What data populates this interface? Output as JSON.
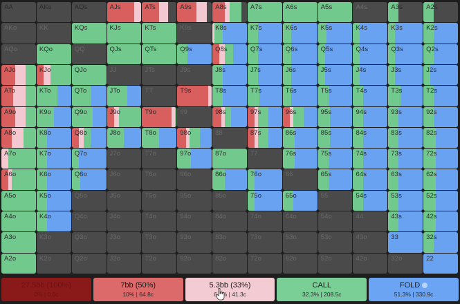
{
  "colors": {
    "raise_large": "#d95e5e",
    "raise_small": "#f4c8d0",
    "call": "#72c98e",
    "fold": "#69a2f1",
    "empty": "#4a4a4a"
  },
  "hands": [
    [
      "AA",
      "AKs",
      "AQs",
      "AJs",
      "ATs",
      "A9s",
      "A8s",
      "A7s",
      "A6s",
      "A5s",
      "A4s",
      "A3s",
      "A2s"
    ],
    [
      "AKo",
      "KK",
      "KQs",
      "KJs",
      "KTs",
      "K9s",
      "K8s",
      "K7s",
      "K6s",
      "K5s",
      "K4s",
      "K3s",
      "K2s"
    ],
    [
      "AQo",
      "KQo",
      "QQ",
      "QJs",
      "QTs",
      "Q9s",
      "Q8s",
      "Q7s",
      "Q6s",
      "Q5s",
      "Q4s",
      "Q3s",
      "Q2s"
    ],
    [
      "AJo",
      "KJo",
      "QJo",
      "JJ",
      "JTs",
      "J9s",
      "J8s",
      "J7s",
      "J6s",
      "J5s",
      "J4s",
      "J3s",
      "J2s"
    ],
    [
      "ATo",
      "KTo",
      "QTo",
      "JTo",
      "TT",
      "T9s",
      "T8s",
      "T7s",
      "T6s",
      "T5s",
      "T4s",
      "T3s",
      "T2s"
    ],
    [
      "A9o",
      "K9o",
      "Q9o",
      "J9o",
      "T9o",
      "99",
      "98s",
      "97s",
      "96s",
      "95s",
      "94s",
      "93s",
      "92s"
    ],
    [
      "A8o",
      "K8o",
      "Q8o",
      "J8o",
      "T8o",
      "98o",
      "88",
      "87s",
      "86s",
      "85s",
      "84s",
      "83s",
      "82s"
    ],
    [
      "A7o",
      "K7o",
      "Q7o",
      "J7o",
      "T7o",
      "97o",
      "87o",
      "77",
      "76s",
      "75s",
      "74s",
      "73s",
      "72s"
    ],
    [
      "A6o",
      "K6o",
      "Q6o",
      "J6o",
      "T6o",
      "96o",
      "86o",
      "76o",
      "66",
      "65s",
      "64s",
      "63s",
      "62s"
    ],
    [
      "A5o",
      "K5o",
      "Q5o",
      "J5o",
      "T5o",
      "95o",
      "85o",
      "75o",
      "65o",
      "55",
      "54s",
      "53s",
      "52s"
    ],
    [
      "A4o",
      "K4o",
      "Q4o",
      "J4o",
      "T4o",
      "94o",
      "84o",
      "74o",
      "64o",
      "54o",
      "44",
      "43s",
      "42s"
    ],
    [
      "A3o",
      "K3o",
      "Q3o",
      "J3o",
      "T3o",
      "93o",
      "83o",
      "73o",
      "63o",
      "53o",
      "43o",
      "33",
      "32s"
    ],
    [
      "A2o",
      "K2o",
      "Q2o",
      "J2o",
      "T2o",
      "92o",
      "82o",
      "72o",
      "62o",
      "52o",
      "42o",
      "32o",
      "22"
    ]
  ],
  "strategy": [
    [
      [
        0,
        0,
        0,
        0,
        1
      ],
      [
        0,
        0,
        0,
        0,
        1
      ],
      [
        0,
        0,
        0,
        0,
        1
      ],
      [
        0.8,
        0.2,
        0,
        0
      ],
      [
        0.5,
        0.25,
        0,
        0
      ],
      [
        0.55,
        0.3,
        0,
        0
      ],
      [
        0.35,
        0.15,
        0.35,
        0
      ],
      [
        0,
        0,
        1,
        0
      ],
      [
        0,
        0,
        1,
        0
      ],
      [
        0,
        0,
        1,
        0
      ],
      [
        0,
        0,
        0,
        0
      ],
      [
        0,
        0,
        0.3,
        0
      ],
      [
        0,
        0,
        0.3,
        0
      ]
    ],
    [
      [
        0,
        0,
        0,
        0
      ],
      [
        0,
        0,
        0,
        0
      ],
      [
        0,
        0,
        1,
        0
      ],
      [
        0,
        0,
        1,
        0
      ],
      [
        0,
        0,
        1,
        0
      ],
      [
        0,
        0,
        0,
        0
      ],
      [
        0,
        0.05,
        0.25,
        0.7
      ],
      [
        0,
        0,
        0.3,
        0.7
      ],
      [
        0,
        0,
        0.25,
        0.75
      ],
      [
        0,
        0,
        0.25,
        0.75
      ],
      [
        0,
        0,
        0.2,
        0.8
      ],
      [
        0,
        0,
        0.2,
        0.8
      ],
      [
        0,
        0,
        0.3,
        0.7
      ]
    ],
    [
      [
        0,
        0,
        0,
        0
      ],
      [
        0,
        0,
        1,
        0
      ],
      [
        0,
        0,
        0,
        0
      ],
      [
        0,
        0,
        1,
        0
      ],
      [
        0,
        0,
        1,
        0
      ],
      [
        0,
        0,
        0.3,
        0.7
      ],
      [
        0.2,
        0.15,
        0.25,
        0.4
      ],
      [
        0,
        0,
        0.3,
        0.7
      ],
      [
        0,
        0,
        0.25,
        0.75
      ],
      [
        0,
        0,
        0.2,
        0.8
      ],
      [
        0,
        0,
        0.2,
        0.8
      ],
      [
        0,
        0,
        0.2,
        0.8
      ],
      [
        0,
        0,
        0.3,
        0.7
      ]
    ],
    [
      [
        0.4,
        0.3,
        0.3,
        0
      ],
      [
        0.2,
        0.2,
        0.6,
        0
      ],
      [
        0,
        0,
        1,
        0
      ],
      [
        0,
        0,
        0,
        0
      ],
      [
        0,
        0,
        0,
        0
      ],
      [
        0,
        0,
        0,
        0
      ],
      [
        0,
        0,
        0.3,
        0.7
      ],
      [
        0,
        0,
        0.3,
        0.7
      ],
      [
        0,
        0,
        0.25,
        0.75
      ],
      [
        0,
        0,
        0.2,
        0.8
      ],
      [
        0,
        0,
        0.2,
        0.8
      ],
      [
        0,
        0,
        0.2,
        0.8
      ],
      [
        0,
        0,
        0.2,
        0.8
      ]
    ],
    [
      [
        0.35,
        0.35,
        0.3,
        0
      ],
      [
        0,
        0,
        0.6,
        0.4
      ],
      [
        0,
        0,
        0.55,
        0.45
      ],
      [
        0,
        0,
        0.6,
        0.4
      ],
      [
        0,
        0,
        0,
        0
      ],
      [
        0.9,
        0.1,
        0,
        0
      ],
      [
        0,
        0,
        0.3,
        0.7
      ],
      [
        0,
        0,
        0.35,
        0.65
      ],
      [
        0,
        0,
        0.25,
        0.75
      ],
      [
        0,
        0,
        0.3,
        0.7
      ],
      [
        0,
        0,
        0.3,
        0.7
      ],
      [
        0,
        0,
        0.35,
        0.65
      ],
      [
        0,
        0,
        0.3,
        0.7
      ]
    ],
    [
      [
        0.4,
        0.3,
        0.3,
        0
      ],
      [
        0,
        0,
        0.5,
        0.5
      ],
      [
        0,
        0,
        0.6,
        0.4
      ],
      [
        0.2,
        0.15,
        0.65,
        0
      ],
      [
        0.85,
        0.1,
        0.05,
        0
      ],
      [
        0,
        0,
        0,
        0
      ],
      [
        0.25,
        0.1,
        0.2,
        0.45
      ],
      [
        0.2,
        0.1,
        0.3,
        0.4
      ],
      [
        0.2,
        0.1,
        0.3,
        0.4
      ],
      [
        0,
        0,
        0.35,
        0.65
      ],
      [
        0,
        0,
        0.3,
        0.7
      ],
      [
        0,
        0,
        0.3,
        0.7
      ],
      [
        0,
        0,
        0.3,
        0.7
      ]
    ],
    [
      [
        0.3,
        0.35,
        0.35,
        0
      ],
      [
        0,
        0,
        0.3,
        0.7
      ],
      [
        0.2,
        0.15,
        0.2,
        0.45
      ],
      [
        0,
        0,
        0.5,
        0.5
      ],
      [
        0,
        0,
        0.5,
        0.5
      ],
      [
        0.25,
        0.1,
        0.3,
        0.35
      ],
      [
        0,
        0,
        0,
        0
      ],
      [
        0.2,
        0.1,
        0.3,
        0.4
      ],
      [
        0,
        0,
        0.35,
        0.65
      ],
      [
        0,
        0,
        0.35,
        0.65
      ],
      [
        0,
        0,
        0.3,
        0.7
      ],
      [
        0,
        0,
        0.3,
        0.7
      ],
      [
        0,
        0,
        0.35,
        0.65
      ]
    ],
    [
      [
        0,
        0.2,
        0.8,
        0
      ],
      [
        0,
        0,
        0.3,
        0.7
      ],
      [
        0,
        0,
        0.2,
        0.8
      ],
      [
        0,
        0,
        0,
        0
      ],
      [
        0,
        0,
        0,
        0
      ],
      [
        0,
        0,
        0.4,
        0.6
      ],
      [
        0,
        0,
        1,
        0
      ],
      [
        0,
        0,
        0,
        0
      ],
      [
        0,
        0,
        0.35,
        0.65
      ],
      [
        0,
        0,
        0.3,
        0.7
      ],
      [
        0,
        0,
        0.3,
        0.7
      ],
      [
        0,
        0,
        0.3,
        0.7
      ],
      [
        0,
        0,
        0.35,
        0.65
      ]
    ],
    [
      [
        0.2,
        0.1,
        0.7,
        0
      ],
      [
        0,
        0,
        0.3,
        0.7
      ],
      [
        0,
        0,
        0.25,
        0.75
      ],
      [
        0,
        0,
        0,
        0
      ],
      [
        0,
        0,
        0,
        0
      ],
      [
        0,
        0,
        0,
        0
      ],
      [
        0,
        0,
        0.35,
        0.65
      ],
      [
        0,
        0,
        0.2,
        0.8
      ],
      [
        0,
        0,
        0,
        0
      ],
      [
        0,
        0,
        0.3,
        0.7
      ],
      [
        0,
        0,
        0.3,
        0.7
      ],
      [
        0,
        0,
        0.3,
        0.7
      ],
      [
        0,
        0,
        0.35,
        0.65
      ]
    ],
    [
      [
        0,
        0,
        1,
        0
      ],
      [
        0,
        0,
        0.3,
        0.7
      ],
      [
        0,
        0,
        0,
        0
      ],
      [
        0,
        0,
        0,
        0
      ],
      [
        0,
        0,
        0,
        0
      ],
      [
        0,
        0,
        0,
        0
      ],
      [
        0,
        0,
        0,
        0
      ],
      [
        0,
        0,
        0.2,
        0.8
      ],
      [
        0,
        0,
        0.3,
        0.7
      ],
      [
        0,
        0,
        0,
        0
      ],
      [
        0,
        0,
        0.3,
        0.7
      ],
      [
        0,
        0,
        0.3,
        0.7
      ],
      [
        0,
        0,
        0.35,
        0.65
      ]
    ],
    [
      [
        0,
        0,
        1,
        0
      ],
      [
        0,
        0,
        0.3,
        0.7
      ],
      [
        0,
        0,
        0,
        0
      ],
      [
        0,
        0,
        0,
        0
      ],
      [
        0,
        0,
        0,
        0
      ],
      [
        0,
        0,
        0,
        0
      ],
      [
        0,
        0,
        0,
        0
      ],
      [
        0,
        0,
        0,
        0
      ],
      [
        0,
        0,
        0,
        0
      ],
      [
        0,
        0,
        0,
        0
      ],
      [
        0,
        0,
        0,
        0
      ],
      [
        0,
        0,
        0.3,
        0.7
      ],
      [
        0,
        0,
        0.35,
        0.65
      ]
    ],
    [
      [
        0,
        0,
        1,
        0
      ],
      [
        0,
        0,
        0,
        0
      ],
      [
        0,
        0,
        0,
        0
      ],
      [
        0,
        0,
        0,
        0
      ],
      [
        0,
        0,
        0,
        0
      ],
      [
        0,
        0,
        0,
        0
      ],
      [
        0,
        0,
        0,
        0
      ],
      [
        0,
        0,
        0,
        0
      ],
      [
        0,
        0,
        0,
        0
      ],
      [
        0,
        0,
        0,
        0
      ],
      [
        0,
        0,
        0,
        0
      ],
      [
        0,
        0,
        0,
        1
      ],
      [
        0,
        0,
        0.3,
        0.7
      ]
    ],
    [
      [
        0,
        0,
        1,
        0
      ],
      [
        0,
        0,
        0,
        0
      ],
      [
        0,
        0,
        0,
        0
      ],
      [
        0,
        0,
        0,
        0
      ],
      [
        0,
        0,
        0,
        0
      ],
      [
        0,
        0,
        0,
        0
      ],
      [
        0,
        0,
        0,
        0
      ],
      [
        0,
        0,
        0,
        0
      ],
      [
        0,
        0,
        0,
        0
      ],
      [
        0,
        0,
        0,
        0
      ],
      [
        0,
        0,
        0,
        0
      ],
      [
        0,
        0,
        0,
        0
      ],
      [
        0,
        0,
        0,
        1
      ]
    ]
  ],
  "actions": [
    {
      "title": "27.5bb (100%)",
      "sub": "0% | 0.0c"
    },
    {
      "title": "7bb (50%)",
      "sub": "10% | 64.8c"
    },
    {
      "title": "5.3bb (33%)",
      "sub": "6.3% | 41.3c"
    },
    {
      "title": "CALL",
      "sub": "32.3% | 208.5c"
    },
    {
      "title": "FOLD",
      "sub": "51.3% | 330.9c"
    }
  ]
}
